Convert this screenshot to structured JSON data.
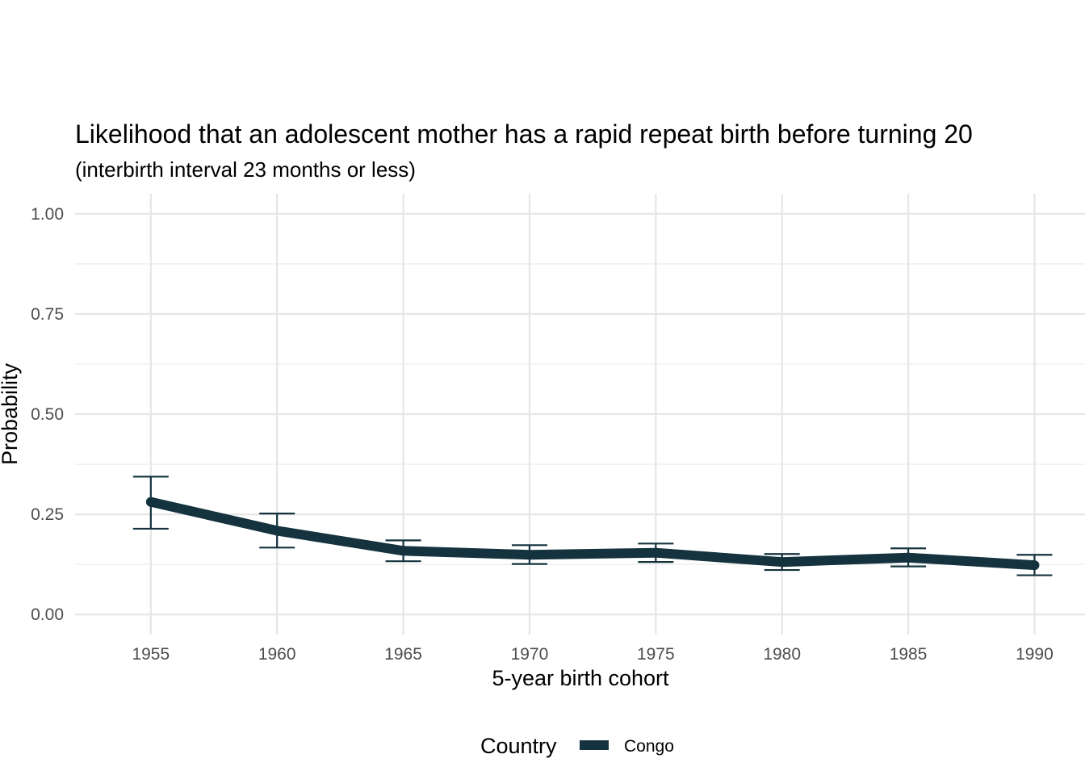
{
  "chart_data": {
    "type": "line",
    "title": "Likelihood that an adolescent mother has a rapid repeat birth before turning 20",
    "subtitle": "(interbirth interval 23 months or less)",
    "xlabel": "5-year birth cohort",
    "ylabel": "Probability",
    "x": [
      1955,
      1960,
      1965,
      1970,
      1975,
      1980,
      1985,
      1990
    ],
    "x_ticks": [
      "1955",
      "1960",
      "1965",
      "1970",
      "1975",
      "1980",
      "1985",
      "1990"
    ],
    "xlim": [
      1952,
      1992
    ],
    "y_ticks": [
      "0.00",
      "0.25",
      "0.50",
      "0.75",
      "1.00"
    ],
    "y_tick_values": [
      0,
      0.25,
      0.5,
      0.75,
      1.0
    ],
    "ylim": [
      -0.05,
      1.05
    ],
    "grid": true,
    "legend": {
      "title": "Country",
      "position": "bottom"
    },
    "series": [
      {
        "name": "Congo",
        "color": "#14333e",
        "values": [
          0.281,
          0.209,
          0.159,
          0.149,
          0.154,
          0.131,
          0.142,
          0.123
        ],
        "lower": [
          0.214,
          0.167,
          0.133,
          0.126,
          0.131,
          0.111,
          0.12,
          0.098
        ],
        "upper": [
          0.344,
          0.252,
          0.185,
          0.173,
          0.177,
          0.151,
          0.165,
          0.149
        ]
      }
    ]
  }
}
